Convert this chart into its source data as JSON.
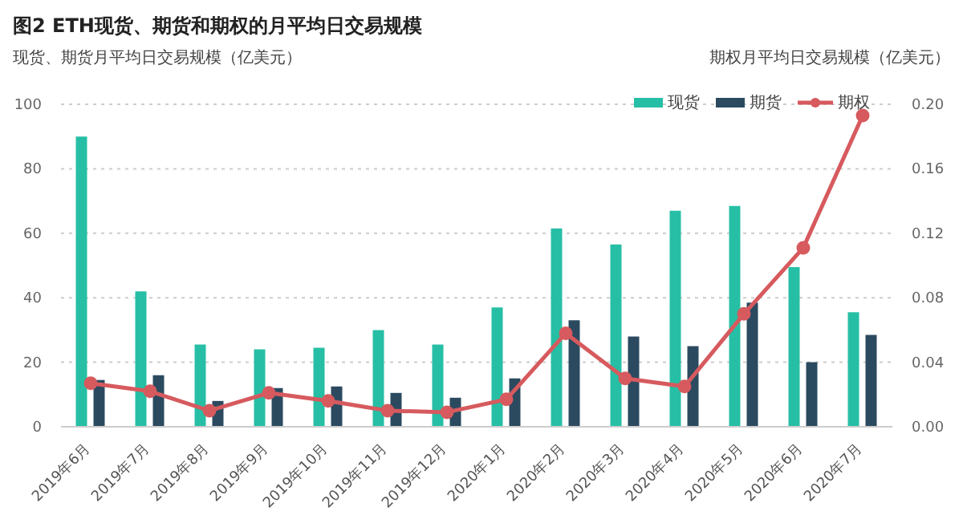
{
  "chart_data": {
    "type": "bar",
    "title": "图2 ETH现货、期货和期权的月平均日交易规模",
    "ylabel": "现货、期货月平均日交易规模（亿美元）",
    "y2label": "期权月平均日交易规模（亿美元）",
    "categories": [
      "2019年6月",
      "2019年7月",
      "2019年8月",
      "2019年9月",
      "2019年10月",
      "2019年11月",
      "2019年12月",
      "2020年1月",
      "2020年2月",
      "2020年3月",
      "2020年4月",
      "2020年5月",
      "2020年6月",
      "2020年7月"
    ],
    "series": [
      {
        "name": "现货",
        "color": "#26bfa5",
        "values": [
          90,
          42,
          25.5,
          24,
          24.5,
          30,
          25.5,
          37,
          61.5,
          56.5,
          67,
          68.5,
          49.5,
          35.5
        ]
      },
      {
        "name": "期货",
        "color": "#2b4a60",
        "values": [
          14.5,
          16,
          8,
          12,
          12.5,
          10.5,
          9,
          15,
          33,
          28,
          25,
          38.5,
          20,
          28.5
        ]
      },
      {
        "name": "期权",
        "type": "line",
        "axis": "y2",
        "color": "#d65a5e",
        "marker": "circle",
        "values": [
          0.027,
          0.022,
          0.01,
          0.021,
          0.016,
          0.01,
          0.009,
          0.017,
          0.058,
          0.03,
          0.025,
          0.07,
          0.111,
          0.193
        ]
      }
    ],
    "ylim": [
      0,
      100
    ],
    "yticks": [
      0,
      20,
      40,
      60,
      80,
      100
    ],
    "y2lim": [
      0,
      0.2
    ],
    "y2ticks": [
      {
        "value": 0,
        "label": "0.00"
      },
      {
        "value": 0.04,
        "label": "0.04"
      },
      {
        "value": 0.08,
        "label": "0.08"
      },
      {
        "value": 0.12,
        "label": "0.12"
      },
      {
        "value": 0.16,
        "label": "0.16"
      },
      {
        "value": 0.2,
        "label": "0.20"
      }
    ],
    "grid": "y",
    "legend": "top right"
  }
}
